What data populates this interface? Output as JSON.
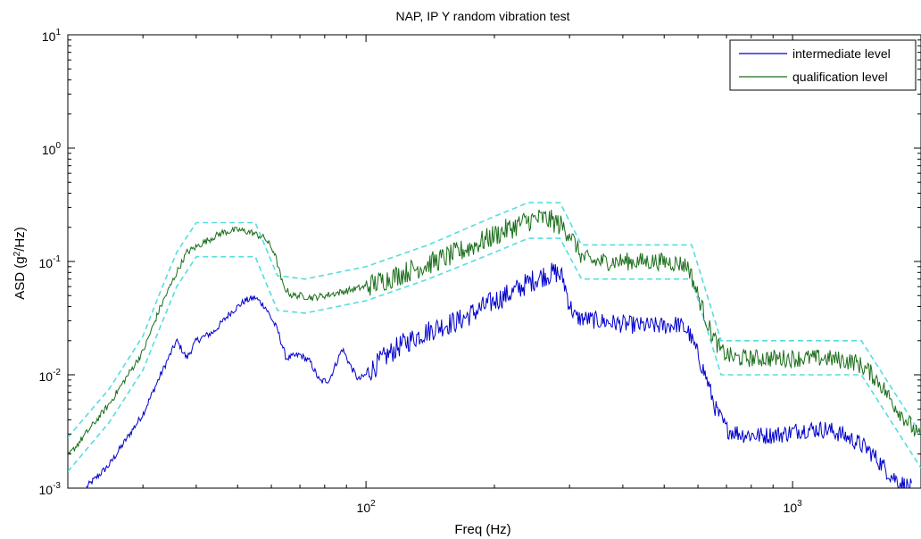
{
  "chart_data": {
    "type": "line",
    "title": "NAP, IP Y random vibration test",
    "xlabel": "Freq (Hz)",
    "ylabel": "ASD (g²/Hz)",
    "xscale": "log",
    "yscale": "log",
    "xlim": [
      20,
      2000
    ],
    "ylim": [
      0.001,
      10
    ],
    "grid": false,
    "legend_position": "top-right",
    "x_ticks": [
      {
        "base": "10",
        "exp": "2",
        "value": 100
      },
      {
        "base": "10",
        "exp": "3",
        "value": 1000
      }
    ],
    "y_ticks": [
      {
        "base": "10",
        "exp": "-3",
        "value": 0.001
      },
      {
        "base": "10",
        "exp": "-2",
        "value": 0.01
      },
      {
        "base": "10",
        "exp": "-1",
        "value": 0.1
      },
      {
        "base": "10",
        "exp": "0",
        "value": 1
      },
      {
        "base": "10",
        "exp": "1",
        "value": 10
      }
    ],
    "series": [
      {
        "name": "intermediate level",
        "color": "#0000cc",
        "points": [
          [
            22,
            0.001
          ],
          [
            25,
            0.0016
          ],
          [
            30,
            0.0045
          ],
          [
            33,
            0.01
          ],
          [
            36,
            0.02
          ],
          [
            38,
            0.014
          ],
          [
            40,
            0.02
          ],
          [
            44,
            0.024
          ],
          [
            48,
            0.035
          ],
          [
            52,
            0.045
          ],
          [
            55,
            0.048
          ],
          [
            58,
            0.04
          ],
          [
            62,
            0.025
          ],
          [
            65,
            0.014
          ],
          [
            70,
            0.015
          ],
          [
            74,
            0.013
          ],
          [
            78,
            0.0087
          ],
          [
            82,
            0.009
          ],
          [
            88,
            0.017
          ],
          [
            92,
            0.012
          ],
          [
            96,
            0.009
          ],
          [
            100,
            0.01
          ],
          [
            110,
            0.014
          ],
          [
            120,
            0.018
          ],
          [
            135,
            0.023
          ],
          [
            150,
            0.027
          ],
          [
            165,
            0.03
          ],
          [
            180,
            0.036
          ],
          [
            200,
            0.045
          ],
          [
            220,
            0.053
          ],
          [
            240,
            0.065
          ],
          [
            260,
            0.075
          ],
          [
            280,
            0.08
          ],
          [
            290,
            0.07
          ],
          [
            300,
            0.042
          ],
          [
            310,
            0.032
          ],
          [
            350,
            0.03
          ],
          [
            400,
            0.028
          ],
          [
            450,
            0.027
          ],
          [
            500,
            0.027
          ],
          [
            540,
            0.028
          ],
          [
            570,
            0.024
          ],
          [
            600,
            0.015
          ],
          [
            630,
            0.009
          ],
          [
            660,
            0.005
          ],
          [
            700,
            0.0033
          ],
          [
            760,
            0.003
          ],
          [
            850,
            0.0029
          ],
          [
            950,
            0.003
          ],
          [
            1050,
            0.0033
          ],
          [
            1200,
            0.0033
          ],
          [
            1300,
            0.003
          ],
          [
            1400,
            0.0026
          ],
          [
            1500,
            0.0022
          ],
          [
            1600,
            0.0017
          ],
          [
            1700,
            0.0013
          ],
          [
            1800,
            0.0011
          ],
          [
            1900,
            0.001
          ]
        ]
      },
      {
        "name": "qualification level",
        "color": "#1a6e1a",
        "points": [
          [
            20,
            0.0019
          ],
          [
            25,
            0.0055
          ],
          [
            30,
            0.016
          ],
          [
            33,
            0.04
          ],
          [
            36,
            0.08
          ],
          [
            38,
            0.12
          ],
          [
            42,
            0.15
          ],
          [
            46,
            0.18
          ],
          [
            50,
            0.19
          ],
          [
            54,
            0.18
          ],
          [
            58,
            0.16
          ],
          [
            61,
            0.12
          ],
          [
            64,
            0.06
          ],
          [
            67,
            0.05
          ],
          [
            70,
            0.05
          ],
          [
            75,
            0.048
          ],
          [
            80,
            0.05
          ],
          [
            90,
            0.055
          ],
          [
            100,
            0.06
          ],
          [
            120,
            0.077
          ],
          [
            140,
            0.095
          ],
          [
            160,
            0.115
          ],
          [
            180,
            0.14
          ],
          [
            200,
            0.17
          ],
          [
            220,
            0.2
          ],
          [
            240,
            0.23
          ],
          [
            260,
            0.24
          ],
          [
            280,
            0.22
          ],
          [
            300,
            0.18
          ],
          [
            320,
            0.11
          ],
          [
            340,
            0.1
          ],
          [
            400,
            0.1
          ],
          [
            450,
            0.1
          ],
          [
            500,
            0.1
          ],
          [
            550,
            0.095
          ],
          [
            570,
            0.09
          ],
          [
            600,
            0.05
          ],
          [
            640,
            0.025
          ],
          [
            680,
            0.016
          ],
          [
            730,
            0.014
          ],
          [
            800,
            0.014
          ],
          [
            900,
            0.014
          ],
          [
            1000,
            0.014
          ],
          [
            1200,
            0.014
          ],
          [
            1400,
            0.013
          ],
          [
            1500,
            0.011
          ],
          [
            1600,
            0.0085
          ],
          [
            1700,
            0.006
          ],
          [
            1800,
            0.0045
          ],
          [
            1900,
            0.0035
          ],
          [
            2000,
            0.0027
          ]
        ]
      }
    ],
    "tolerance_bands": [
      {
        "color": "#55dddd",
        "points": [
          [
            20,
            0.0028
          ],
          [
            25,
            0.0075
          ],
          [
            30,
            0.022
          ],
          [
            33,
            0.055
          ],
          [
            36,
            0.12
          ],
          [
            40,
            0.22
          ],
          [
            55,
            0.22
          ],
          [
            62,
            0.075
          ],
          [
            72,
            0.07
          ],
          [
            100,
            0.09
          ],
          [
            140,
            0.14
          ],
          [
            200,
            0.25
          ],
          [
            240,
            0.33
          ],
          [
            285,
            0.33
          ],
          [
            320,
            0.14
          ],
          [
            400,
            0.14
          ],
          [
            580,
            0.14
          ],
          [
            680,
            0.02
          ],
          [
            800,
            0.02
          ],
          [
            1200,
            0.02
          ],
          [
            1450,
            0.02
          ],
          [
            2000,
            0.003
          ]
        ]
      },
      {
        "color": "#55dddd",
        "points": [
          [
            20,
            0.0014
          ],
          [
            25,
            0.0038
          ],
          [
            30,
            0.011
          ],
          [
            33,
            0.027
          ],
          [
            36,
            0.06
          ],
          [
            40,
            0.11
          ],
          [
            55,
            0.11
          ],
          [
            62,
            0.037
          ],
          [
            72,
            0.035
          ],
          [
            100,
            0.045
          ],
          [
            140,
            0.07
          ],
          [
            200,
            0.12
          ],
          [
            240,
            0.16
          ],
          [
            285,
            0.16
          ],
          [
            320,
            0.07
          ],
          [
            400,
            0.07
          ],
          [
            580,
            0.07
          ],
          [
            680,
            0.01
          ],
          [
            800,
            0.01
          ],
          [
            1200,
            0.01
          ],
          [
            1450,
            0.01
          ],
          [
            2000,
            0.0015
          ]
        ]
      }
    ]
  }
}
